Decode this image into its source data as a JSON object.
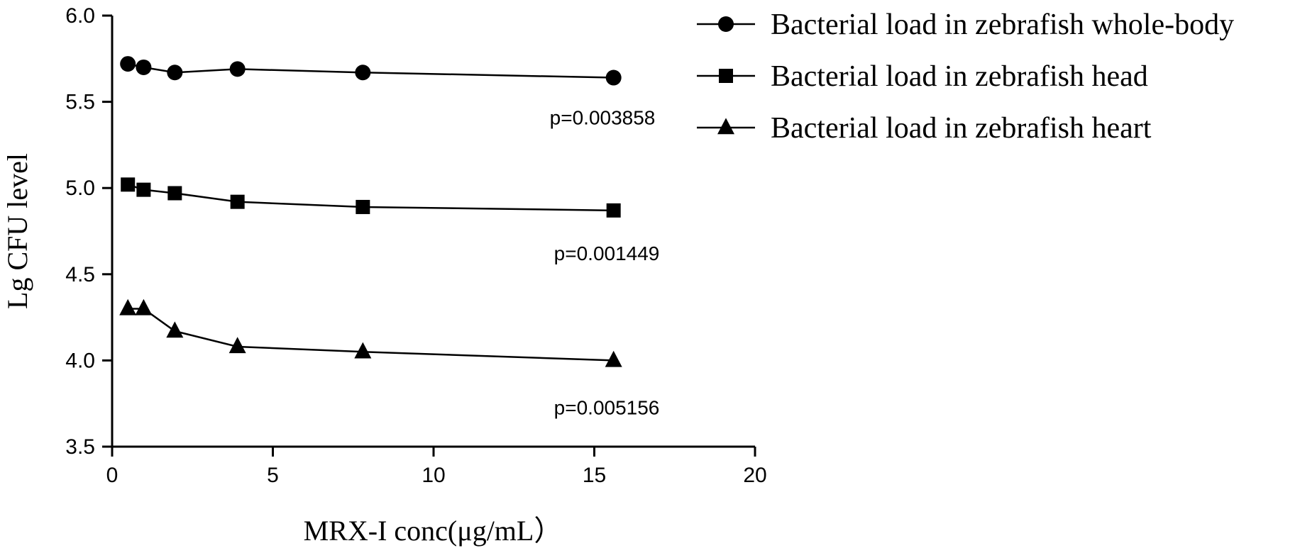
{
  "chart_data": {
    "type": "line",
    "xlabel": "MRX-I conc(μg/mL）",
    "ylabel": "Lg CFU level",
    "xlim": [
      0,
      20
    ],
    "ylim": [
      3.5,
      6.0
    ],
    "x_ticks": [
      "0",
      "5",
      "10",
      "20"
    ],
    "x_tick_values": [
      0,
      5,
      10,
      20
    ],
    "x_ticks_all": [
      {
        "value": 0,
        "label": "0"
      },
      {
        "value": 5,
        "label": "5"
      },
      {
        "value": 10,
        "label": "10"
      },
      {
        "value": 15,
        "label": "15"
      },
      {
        "value": 20,
        "label": "20"
      }
    ],
    "y_ticks": [
      {
        "value": 3.5,
        "label": "3.5"
      },
      {
        "value": 4.0,
        "label": "4.0"
      },
      {
        "value": 4.5,
        "label": "4.5"
      },
      {
        "value": 5.0,
        "label": "5.0"
      },
      {
        "value": 5.5,
        "label": "5.5"
      },
      {
        "value": 6.0,
        "label": "6.0"
      }
    ],
    "grid": false,
    "legend_position": "top-right",
    "x": [
      0.49,
      0.98,
      1.95,
      3.9,
      7.8,
      15.6
    ],
    "series": [
      {
        "name": "Bacterial load in zebrafish whole-body",
        "marker": "circle",
        "values": [
          5.72,
          5.7,
          5.67,
          5.69,
          5.67,
          5.64
        ],
        "annotation": "p=0.003858"
      },
      {
        "name": "Bacterial load in zebrafish head",
        "marker": "square",
        "values": [
          5.02,
          4.99,
          4.97,
          4.92,
          4.89,
          4.87
        ],
        "annotation": "p=0.001449"
      },
      {
        "name": "Bacterial load in zebrafish heart",
        "marker": "triangle",
        "values": [
          4.3,
          4.3,
          4.17,
          4.08,
          4.05,
          4.0
        ],
        "annotation": "p=0.005156"
      }
    ]
  }
}
